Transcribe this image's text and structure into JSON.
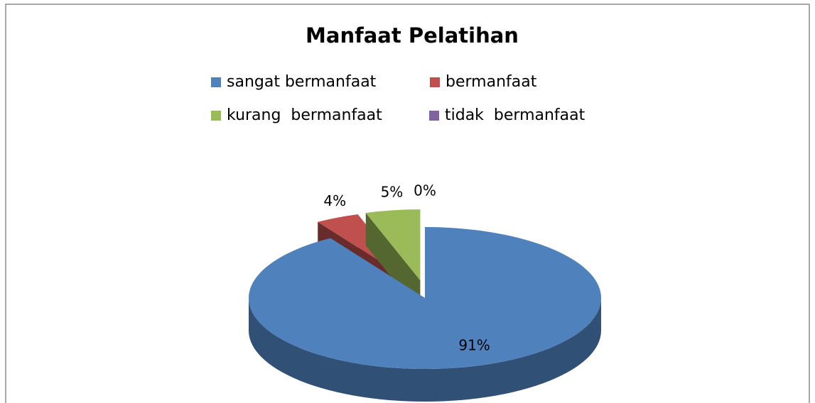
{
  "chart_data": {
    "type": "pie",
    "title": "Manfaat Pelatihan",
    "categories": [
      "sangat bermanfaat",
      "bermanfaat",
      "kurang  bermanfaat",
      "tidak  bermanfaat"
    ],
    "values": [
      91,
      4,
      5,
      0
    ],
    "value_labels": [
      "91%",
      "4%",
      "5%",
      "0%"
    ],
    "colors": [
      "#4f81bd",
      "#c0504d",
      "#9bbb59",
      "#8064a2"
    ],
    "legend": "top"
  }
}
